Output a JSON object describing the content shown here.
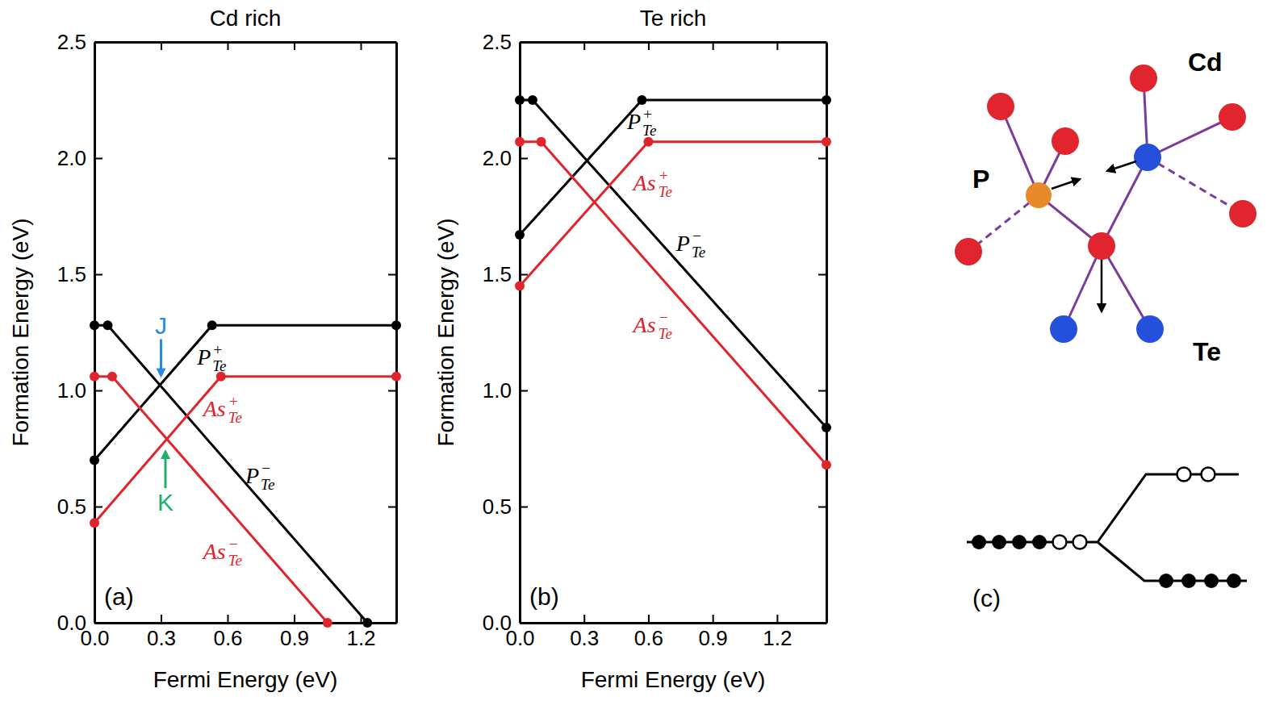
{
  "chart_data": [
    {
      "type": "line",
      "title": "Cd rich",
      "panel": "(a)",
      "x_label": "Fermi Energy (eV)",
      "y_label": "Formation Energy (eV)",
      "xlim": [
        0,
        1.36
      ],
      "ylim": [
        0,
        2.5
      ],
      "xticks": [
        {
          "value": 0,
          "label": "0.0"
        },
        {
          "value": 0.3,
          "label": "0.3"
        },
        {
          "value": 0.6,
          "label": "0.6"
        },
        {
          "value": 0.9,
          "label": "0.9"
        },
        {
          "value": 1.2,
          "label": "1.2"
        }
      ],
      "yticks": [
        {
          "value": 0,
          "label": "0.0"
        },
        {
          "value": 0.5,
          "label": "0.5"
        },
        {
          "value": 1,
          "label": "1.0"
        },
        {
          "value": 1.5,
          "label": "1.5"
        },
        {
          "value": 2,
          "label": "2.0"
        },
        {
          "value": 2.5,
          "label": "2.5"
        }
      ],
      "series": [
        {
          "name": "P",
          "sub": "Te",
          "sup": "+",
          "color": "#000000",
          "marker": "circle",
          "x": [
            0,
            0.53,
            1.36
          ],
          "values": [
            0.7,
            1.28,
            1.28
          ]
        },
        {
          "name": "P",
          "sub": "Te",
          "sup": "−",
          "color": "#000000",
          "marker": "circle",
          "x": [
            0,
            0.06,
            1.23
          ],
          "values": [
            1.28,
            1.28,
            0
          ]
        },
        {
          "name": "As",
          "sub": "Te",
          "sup": "+",
          "color": "#e0242b",
          "marker": "circle",
          "x": [
            0,
            0.57,
            1.36
          ],
          "values": [
            0.43,
            1.06,
            1.06
          ]
        },
        {
          "name": "As",
          "sub": "Te",
          "sup": "−",
          "color": "#e0242b",
          "marker": "circle",
          "x": [
            0,
            0.08,
            1.05
          ],
          "values": [
            1.06,
            1.06,
            0
          ]
        }
      ],
      "annotations": [
        {
          "text": "J",
          "x": 0.3,
          "y": 1.04,
          "color": "#2a8ae0"
        },
        {
          "text": "K",
          "x": 0.32,
          "y": 0.76,
          "color": "#1fae6f"
        }
      ]
    },
    {
      "type": "line",
      "title": "Te rich",
      "panel": "(b)",
      "x_label": "Fermi Energy (eV)",
      "y_label": "Formation Energy (eV)",
      "xlim": [
        0,
        1.43
      ],
      "ylim": [
        0,
        2.5
      ],
      "xticks": [
        {
          "value": 0,
          "label": "0.0"
        },
        {
          "value": 0.3,
          "label": "0.3"
        },
        {
          "value": 0.6,
          "label": "0.6"
        },
        {
          "value": 0.9,
          "label": "0.9"
        },
        {
          "value": 1.2,
          "label": "1.2"
        }
      ],
      "yticks": [
        {
          "value": 0,
          "label": "0.0"
        },
        {
          "value": 0.5,
          "label": "0.5"
        },
        {
          "value": 1,
          "label": "1.0"
        },
        {
          "value": 1.5,
          "label": "1.5"
        },
        {
          "value": 2,
          "label": "2.0"
        },
        {
          "value": 2.5,
          "label": "2.5"
        }
      ],
      "series": [
        {
          "name": "P",
          "sub": "Te",
          "sup": "+",
          "color": "#000000",
          "marker": "circle",
          "x": [
            0,
            0.57,
            1.43
          ],
          "values": [
            1.67,
            2.25,
            2.25
          ]
        },
        {
          "name": "P",
          "sub": "Te",
          "sup": "−",
          "color": "#000000",
          "marker": "circle",
          "x": [
            0,
            0.06,
            1.43
          ],
          "values": [
            2.25,
            2.25,
            0.84
          ]
        },
        {
          "name": "As",
          "sub": "Te",
          "sup": "+",
          "color": "#e0242b",
          "marker": "circle",
          "x": [
            0,
            0.6,
            1.43
          ],
          "values": [
            1.45,
            2.07,
            2.07
          ]
        },
        {
          "name": "As",
          "sub": "Te",
          "sup": "−",
          "color": "#e0242b",
          "marker": "circle",
          "x": [
            0,
            0.1,
            1.43
          ],
          "values": [
            2.07,
            2.07,
            0.68
          ]
        }
      ],
      "annotations": []
    }
  ],
  "diagram": {
    "panel": "(c)",
    "labels": [
      "P",
      "Cd",
      "Te"
    ],
    "levels": {
      "initial": {
        "filled": 4,
        "empty": 2
      },
      "upper": {
        "filled": 0,
        "empty": 2
      },
      "lower": {
        "filled": 4,
        "empty": 0
      }
    }
  }
}
